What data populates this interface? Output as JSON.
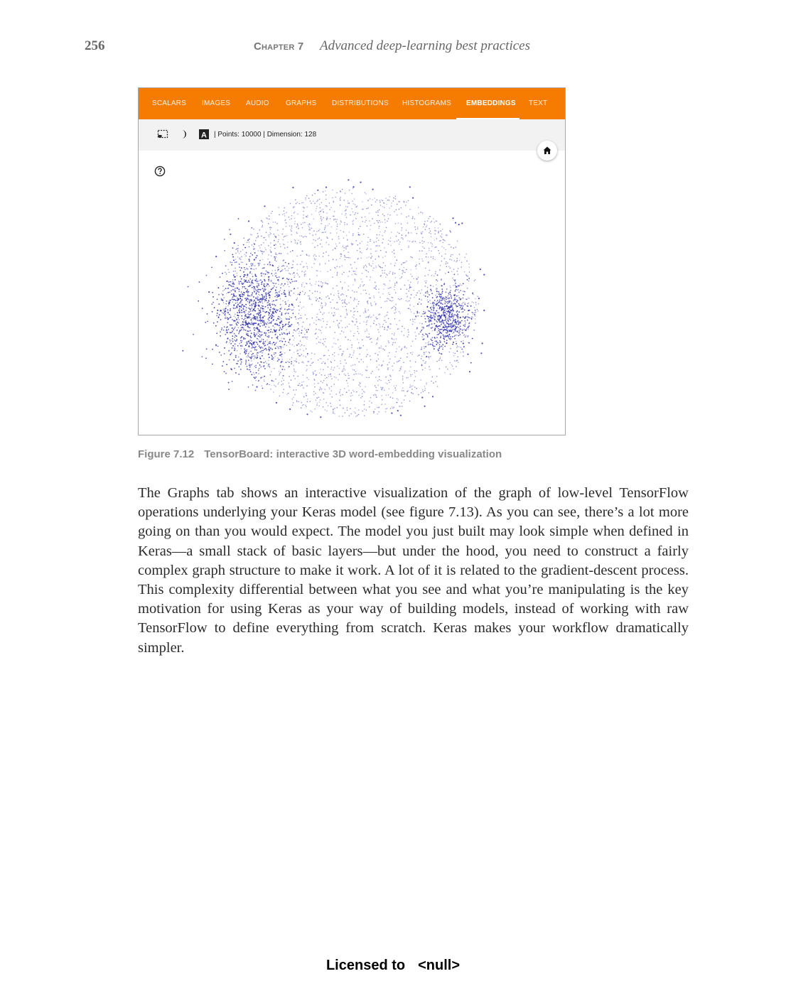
{
  "header": {
    "page_number": "256",
    "chapter_label": "Chapter 7",
    "chapter_title": "Advanced deep-learning best practices"
  },
  "figure": {
    "tabs": [
      {
        "label": "SCALARS",
        "active": false
      },
      {
        "label": "IMAGES",
        "active": false
      },
      {
        "label": "AUDIO",
        "active": false
      },
      {
        "label": "GRAPHS",
        "active": false
      },
      {
        "label": "DISTRIBUTIONS",
        "active": false
      },
      {
        "label": "HISTOGRAMS",
        "active": false
      },
      {
        "label": "EMBEDDINGS",
        "active": true
      },
      {
        "label": "TEXT",
        "active": false
      }
    ],
    "toolbar": {
      "icons": [
        "selection-box-icon",
        "night-mode-icon",
        "label-toggle-icon"
      ],
      "label_icon_letter": "A",
      "points_text": "| Points: 10000 | Dimension: 128"
    },
    "home_icon": "home-icon",
    "help_icon": "help-icon",
    "colors": {
      "tab_bar": "#f57c00",
      "points_dense": "#2a2aa8",
      "points_sparse": "#6e6ec8"
    }
  },
  "caption": {
    "label": "Figure 7.12",
    "text": "TensorBoard: interactive 3D word-embedding visualization"
  },
  "body": {
    "paragraph": "The Graphs tab shows an interactive visualization of the graph of low-level TensorFlow operations underlying your Keras model (see figure 7.13). As you can see, there’s a lot more going on than you would expect. The model you just built may look simple when defined in Keras—a small stack of basic layers—but under the hood, you need to construct a fairly complex graph structure to make it work. A lot of it is related to the gradient-descent process. This complexity differential between what you see and what you’re manipulating is the key motivation for using Keras as your way of building models, instead of working with raw TensorFlow to define everything from scratch. Keras makes your workflow dramatically simpler."
  },
  "footer": {
    "licensed_to": "Licensed to",
    "licensee": "<null>"
  }
}
